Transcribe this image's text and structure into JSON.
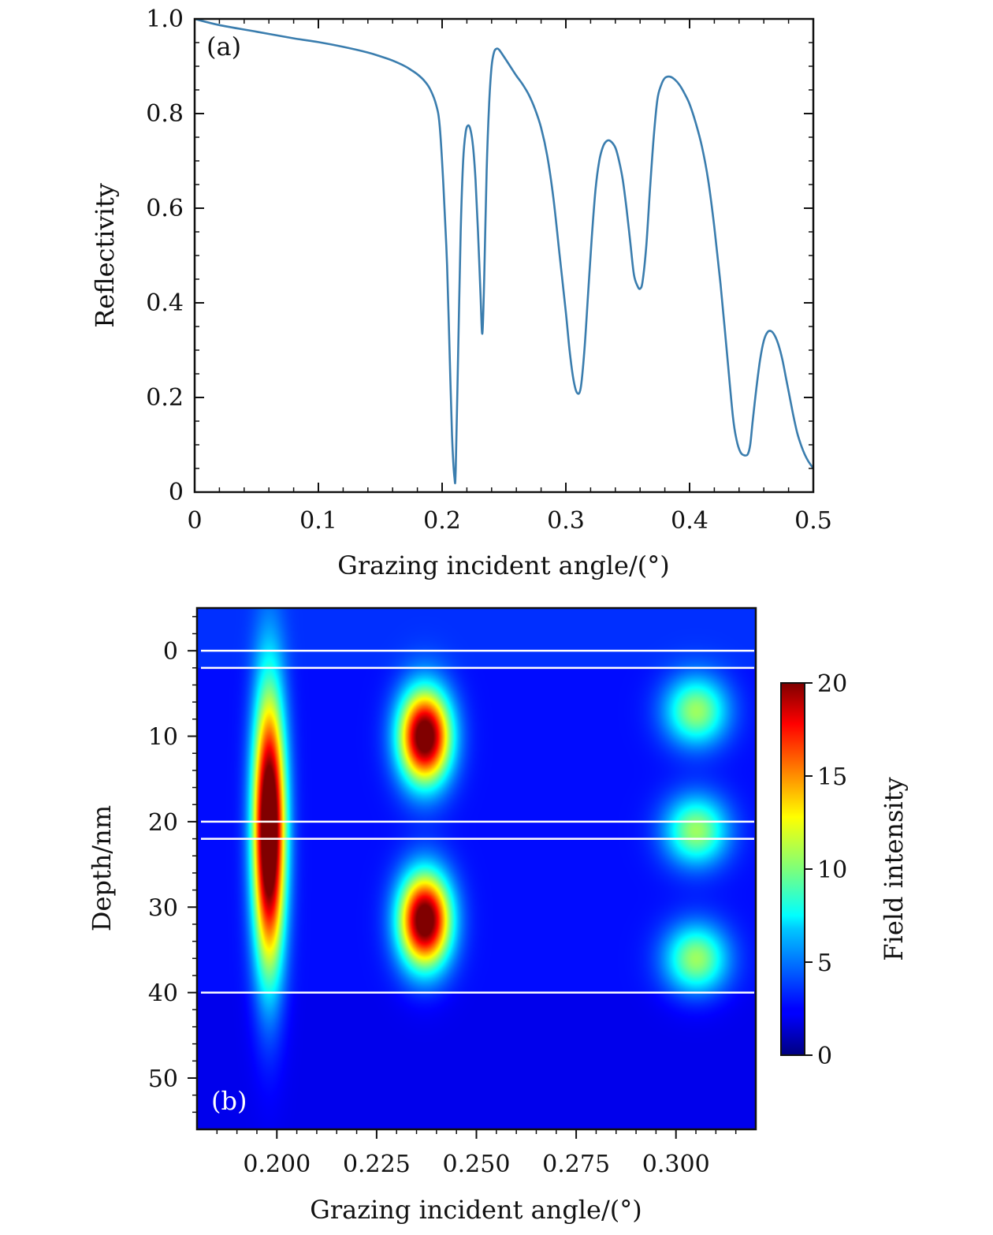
{
  "chart_data": [
    {
      "type": "line",
      "panel_label": "(a)",
      "xlabel": "Grazing incident angle/(°)",
      "ylabel": "Reflectivity",
      "xlim": [
        0,
        0.5
      ],
      "ylim": [
        0,
        1.0
      ],
      "x_ticks": [
        "0",
        "0.1",
        "0.2",
        "0.3",
        "0.4",
        "0.5"
      ],
      "y_ticks": [
        "0",
        "0.2",
        "0.4",
        "0.6",
        "0.8",
        "1.0"
      ],
      "series_color": "#3a7dae",
      "series": [
        {
          "x": [
            0,
            0.02,
            0.05,
            0.08,
            0.1,
            0.12,
            0.14,
            0.15,
            0.16,
            0.17,
            0.175,
            0.18,
            0.185,
            0.19,
            0.195,
            0.198,
            0.201,
            0.204,
            0.206,
            0.208,
            0.21,
            0.211,
            0.213,
            0.215,
            0.217,
            0.219,
            0.221,
            0.223,
            0.225,
            0.227,
            0.229,
            0.231,
            0.2325,
            0.234,
            0.236,
            0.238,
            0.24,
            0.242,
            0.244,
            0.246,
            0.25,
            0.255,
            0.26,
            0.265,
            0.27,
            0.275,
            0.28,
            0.285,
            0.29,
            0.295,
            0.3,
            0.303,
            0.306,
            0.309,
            0.312,
            0.315,
            0.318,
            0.321,
            0.324,
            0.327,
            0.33,
            0.333,
            0.336,
            0.34,
            0.343,
            0.346,
            0.349,
            0.352,
            0.355,
            0.358,
            0.36,
            0.362,
            0.365,
            0.368,
            0.371,
            0.374,
            0.377,
            0.38,
            0.384,
            0.388,
            0.392,
            0.396,
            0.4,
            0.405,
            0.41,
            0.415,
            0.42,
            0.425,
            0.43,
            0.435,
            0.438,
            0.441,
            0.444,
            0.447,
            0.449,
            0.451,
            0.454,
            0.457,
            0.46,
            0.463,
            0.466,
            0.469,
            0.472,
            0.475,
            0.478,
            0.481,
            0.484,
            0.487,
            0.49,
            0.493,
            0.496,
            0.5
          ],
          "y": [
            1.0,
            0.987,
            0.973,
            0.959,
            0.951,
            0.941,
            0.929,
            0.921,
            0.912,
            0.9,
            0.892,
            0.883,
            0.871,
            0.853,
            0.82,
            0.775,
            0.65,
            0.48,
            0.3,
            0.12,
            0.03,
            0.05,
            0.3,
            0.55,
            0.7,
            0.76,
            0.775,
            0.765,
            0.73,
            0.66,
            0.55,
            0.42,
            0.335,
            0.45,
            0.68,
            0.82,
            0.9,
            0.93,
            0.937,
            0.935,
            0.92,
            0.9,
            0.88,
            0.862,
            0.84,
            0.81,
            0.77,
            0.71,
            0.62,
            0.5,
            0.38,
            0.3,
            0.24,
            0.21,
            0.22,
            0.3,
            0.42,
            0.54,
            0.64,
            0.7,
            0.73,
            0.742,
            0.742,
            0.728,
            0.7,
            0.66,
            0.6,
            0.53,
            0.46,
            0.435,
            0.43,
            0.445,
            0.52,
            0.64,
            0.75,
            0.83,
            0.86,
            0.875,
            0.878,
            0.872,
            0.86,
            0.842,
            0.82,
            0.78,
            0.73,
            0.66,
            0.56,
            0.44,
            0.3,
            0.16,
            0.11,
            0.085,
            0.078,
            0.08,
            0.1,
            0.15,
            0.22,
            0.28,
            0.32,
            0.338,
            0.34,
            0.33,
            0.31,
            0.28,
            0.24,
            0.2,
            0.16,
            0.125,
            0.1,
            0.08,
            0.065,
            0.05
          ]
        }
      ]
    },
    {
      "type": "heatmap",
      "panel_label": "(b)",
      "xlabel": "Grazing incident angle/(°)",
      "ylabel": "Depth/nm",
      "xlim": [
        0.18,
        0.32
      ],
      "ylim": [
        -5,
        56
      ],
      "x_ticks": [
        "0.200",
        "0.225",
        "0.250",
        "0.275",
        "0.300"
      ],
      "y_ticks": [
        "0",
        "10",
        "20",
        "30",
        "40",
        "50"
      ],
      "colorbar": {
        "label": "Field intensity",
        "range": [
          0,
          20
        ],
        "ticks": [
          "0",
          "5",
          "10",
          "15",
          "20"
        ]
      },
      "background_intensity": 1.5,
      "hotspots": [
        {
          "angle": 0.198,
          "depth": 21,
          "peak": 25,
          "angle_width": 0.0028,
          "depth_width": 11
        },
        {
          "angle": 0.237,
          "depth": 10,
          "peak": 22,
          "angle_width": 0.0045,
          "depth_width": 3.8
        },
        {
          "angle": 0.237,
          "depth": 31.5,
          "peak": 22,
          "angle_width": 0.0045,
          "depth_width": 3.8
        },
        {
          "angle": 0.305,
          "depth": 7,
          "peak": 9,
          "angle_width": 0.0055,
          "depth_width": 2.8
        },
        {
          "angle": 0.305,
          "depth": 21,
          "peak": 9,
          "angle_width": 0.0055,
          "depth_width": 2.8
        },
        {
          "angle": 0.305,
          "depth": 36,
          "peak": 9,
          "angle_width": 0.0055,
          "depth_width": 2.8
        }
      ],
      "layer_boundaries_nm": [
        0,
        2,
        20,
        22,
        40
      ]
    }
  ]
}
